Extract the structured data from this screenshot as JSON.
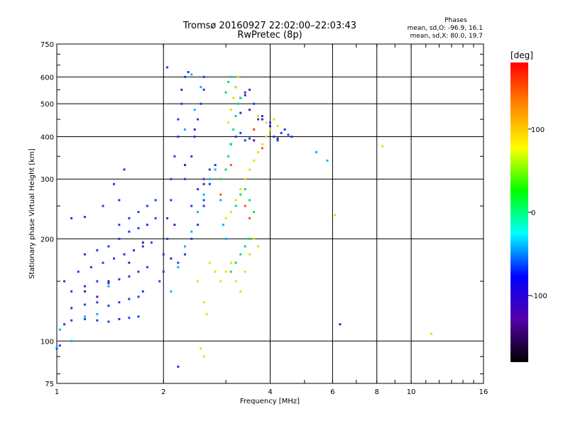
{
  "chart_data": {
    "type": "scatter",
    "title_line1": "Tromsø 20160927 22:02:00–22:03:43",
    "title_line2": "RwPretec (8p)",
    "xlabel": "Frequency [MHz]",
    "ylabel": "Stationary phase Virtual Height [km]",
    "x_scale": "log",
    "y_scale": "log",
    "xlim": [
      1,
      16
    ],
    "ylim": [
      75,
      750
    ],
    "x_ticks": [
      1,
      2,
      4,
      6,
      8,
      10,
      16
    ],
    "y_ticks": [
      75,
      100,
      200,
      300,
      400,
      500,
      600,
      750
    ],
    "grid": true,
    "phases": {
      "title": "Phases",
      "line_o": "mean, sd,O: -96.9, 16.1",
      "line_x": "mean, sd,X: 80.0, 19.7"
    },
    "colorbar": {
      "label": "[deg]",
      "range": [
        -180,
        180
      ],
      "ticks": [
        100,
        0,
        -100
      ],
      "colors": [
        "#ff0000",
        "#ff8800",
        "#ffff00",
        "#00ff00",
        "#00ffff",
        "#0000ff",
        "#5500aa",
        "#000000"
      ]
    },
    "series": [
      {
        "phase": -100,
        "color": "#1a3cf0",
        "points": [
          [
            1.0,
            95
          ],
          [
            1.02,
            97
          ],
          [
            1.05,
            112
          ],
          [
            1.1,
            115
          ],
          [
            1.2,
            116
          ],
          [
            1.3,
            115
          ],
          [
            1.4,
            114
          ],
          [
            1.5,
            116
          ],
          [
            1.6,
            117
          ],
          [
            1.7,
            118
          ],
          [
            1.1,
            125
          ],
          [
            1.2,
            128
          ],
          [
            1.3,
            130
          ],
          [
            1.4,
            127
          ],
          [
            1.5,
            130
          ],
          [
            1.6,
            133
          ],
          [
            1.7,
            135
          ],
          [
            1.75,
            140
          ],
          [
            1.1,
            140
          ],
          [
            1.2,
            145
          ],
          [
            1.3,
            150
          ],
          [
            1.4,
            148
          ],
          [
            1.5,
            152
          ],
          [
            1.6,
            155
          ],
          [
            1.7,
            160
          ],
          [
            1.8,
            165
          ],
          [
            1.05,
            150
          ],
          [
            1.15,
            160
          ],
          [
            1.25,
            165
          ],
          [
            1.35,
            170
          ],
          [
            1.45,
            175
          ],
          [
            1.55,
            180
          ],
          [
            1.65,
            185
          ],
          [
            1.75,
            190
          ],
          [
            1.85,
            195
          ],
          [
            1.2,
            180
          ],
          [
            1.3,
            185
          ],
          [
            1.4,
            190
          ],
          [
            1.5,
            200
          ],
          [
            1.6,
            210
          ],
          [
            1.7,
            215
          ],
          [
            1.8,
            220
          ],
          [
            1.9,
            230
          ],
          [
            1.1,
            230
          ],
          [
            1.2,
            232
          ],
          [
            1.35,
            250
          ],
          [
            1.45,
            290
          ],
          [
            1.55,
            320
          ],
          [
            1.5,
            260
          ],
          [
            1.95,
            150
          ],
          [
            2.0,
            160
          ],
          [
            2.0,
            180
          ],
          [
            2.05,
            200
          ],
          [
            2.05,
            230
          ],
          [
            2.1,
            260
          ],
          [
            2.1,
            300
          ],
          [
            2.15,
            350
          ],
          [
            2.2,
            400
          ],
          [
            2.2,
            450
          ],
          [
            2.25,
            500
          ],
          [
            2.25,
            550
          ],
          [
            2.3,
            600
          ],
          [
            2.35,
            620
          ],
          [
            2.05,
            640
          ],
          [
            2.3,
            300
          ],
          [
            2.4,
            350
          ],
          [
            2.45,
            400
          ],
          [
            2.5,
            450
          ],
          [
            2.55,
            500
          ],
          [
            2.6,
            550
          ],
          [
            2.6,
            600
          ],
          [
            2.4,
            250
          ],
          [
            2.5,
            280
          ],
          [
            2.6,
            300
          ],
          [
            2.7,
            320
          ],
          [
            2.8,
            330
          ],
          [
            2.7,
            290
          ],
          [
            2.6,
            250
          ],
          [
            2.2,
            170
          ],
          [
            2.3,
            180
          ],
          [
            2.4,
            200
          ],
          [
            2.5,
            220
          ],
          [
            2.6,
            260
          ],
          [
            3.1,
            380
          ],
          [
            3.2,
            400
          ],
          [
            3.3,
            410
          ],
          [
            3.4,
            390
          ],
          [
            3.5,
            395
          ],
          [
            3.6,
            420
          ],
          [
            3.7,
            450
          ],
          [
            3.3,
            520
          ],
          [
            3.4,
            540
          ],
          [
            3.5,
            550
          ],
          [
            3.6,
            500
          ],
          [
            3.8,
            460
          ],
          [
            4.0,
            440
          ],
          [
            4.1,
            400
          ],
          [
            4.2,
            390
          ],
          [
            4.3,
            410
          ],
          [
            4.4,
            420
          ],
          [
            4.5,
            405
          ],
          [
            4.6,
            400
          ],
          [
            1.5,
            220
          ],
          [
            1.6,
            230
          ],
          [
            1.7,
            240
          ],
          [
            1.8,
            250
          ],
          [
            1.9,
            260
          ],
          [
            2.2,
            84
          ]
        ]
      },
      {
        "phase": -140,
        "color": "#5a10b0",
        "points": [
          [
            1.2,
            140
          ],
          [
            1.3,
            135
          ],
          [
            1.4,
            150
          ],
          [
            1.6,
            170
          ],
          [
            1.75,
            195
          ],
          [
            2.1,
            175
          ],
          [
            2.15,
            220
          ],
          [
            2.3,
            330
          ],
          [
            2.45,
            420
          ],
          [
            3.3,
            470
          ],
          [
            3.5,
            480
          ],
          [
            3.6,
            390
          ],
          [
            3.8,
            450
          ],
          [
            4.0,
            430
          ],
          [
            4.2,
            395
          ],
          [
            3.2,
            560
          ],
          [
            3.4,
            530
          ],
          [
            2.6,
            290
          ],
          [
            6.3,
            112
          ]
        ]
      },
      {
        "phase": -60,
        "color": "#00b4ff",
        "points": [
          [
            1.0,
            96
          ],
          [
            1.02,
            108
          ],
          [
            1.1,
            100
          ],
          [
            1.2,
            118
          ],
          [
            1.3,
            120
          ],
          [
            1.4,
            145
          ],
          [
            2.1,
            140
          ],
          [
            2.2,
            165
          ],
          [
            2.3,
            190
          ],
          [
            2.4,
            210
          ],
          [
            2.5,
            240
          ],
          [
            2.6,
            270
          ],
          [
            2.7,
            300
          ],
          [
            2.8,
            320
          ],
          [
            2.9,
            260
          ],
          [
            2.95,
            220
          ],
          [
            3.0,
            200
          ],
          [
            2.3,
            420
          ],
          [
            2.45,
            480
          ],
          [
            2.55,
            560
          ],
          [
            2.4,
            610
          ],
          [
            5.4,
            360
          ],
          [
            5.8,
            340
          ]
        ]
      },
      {
        "phase": 20,
        "color": "#00e060",
        "points": [
          [
            2.9,
            300
          ],
          [
            3.0,
            320
          ],
          [
            3.05,
            350
          ],
          [
            3.1,
            380
          ],
          [
            3.15,
            420
          ],
          [
            3.2,
            460
          ],
          [
            3.25,
            500
          ],
          [
            3.3,
            520
          ],
          [
            3.0,
            540
          ],
          [
            3.05,
            580
          ],
          [
            3.1,
            600
          ],
          [
            3.2,
            250
          ],
          [
            3.3,
            270
          ],
          [
            3.4,
            280
          ],
          [
            3.5,
            260
          ],
          [
            3.6,
            240
          ],
          [
            3.1,
            160
          ],
          [
            3.2,
            170
          ],
          [
            3.3,
            180
          ],
          [
            3.4,
            190
          ],
          [
            3.5,
            200
          ]
        ]
      },
      {
        "phase": 100,
        "color": "#d8e800",
        "points": [
          [
            2.7,
            170
          ],
          [
            2.8,
            160
          ],
          [
            2.9,
            150
          ],
          [
            3.0,
            160
          ],
          [
            3.1,
            170
          ],
          [
            3.2,
            150
          ],
          [
            3.3,
            140
          ],
          [
            3.4,
            160
          ],
          [
            3.5,
            180
          ],
          [
            3.6,
            200
          ],
          [
            3.7,
            190
          ],
          [
            2.5,
            150
          ],
          [
            2.6,
            130
          ],
          [
            2.65,
            120
          ],
          [
            2.55,
            95
          ],
          [
            2.6,
            90
          ],
          [
            3.0,
            230
          ],
          [
            3.1,
            240
          ],
          [
            3.2,
            260
          ],
          [
            3.3,
            280
          ],
          [
            3.4,
            300
          ],
          [
            3.5,
            320
          ],
          [
            3.6,
            340
          ],
          [
            3.7,
            360
          ],
          [
            3.8,
            380
          ],
          [
            3.9,
            400
          ],
          [
            4.0,
            420
          ],
          [
            3.05,
            440
          ],
          [
            3.1,
            480
          ],
          [
            3.15,
            520
          ],
          [
            3.2,
            560
          ],
          [
            3.25,
            600
          ],
          [
            3.7,
            460
          ],
          [
            3.9,
            440
          ],
          [
            4.1,
            450
          ],
          [
            4.2,
            430
          ],
          [
            6.1,
            235
          ],
          [
            8.3,
            375
          ],
          [
            11.4,
            105
          ]
        ]
      },
      {
        "phase": 150,
        "color": "#ff5010",
        "points": [
          [
            3.1,
            330
          ],
          [
            3.4,
            250
          ],
          [
            3.6,
            420
          ],
          [
            3.8,
            370
          ],
          [
            3.5,
            230
          ],
          [
            2.9,
            270
          ]
        ]
      }
    ]
  }
}
